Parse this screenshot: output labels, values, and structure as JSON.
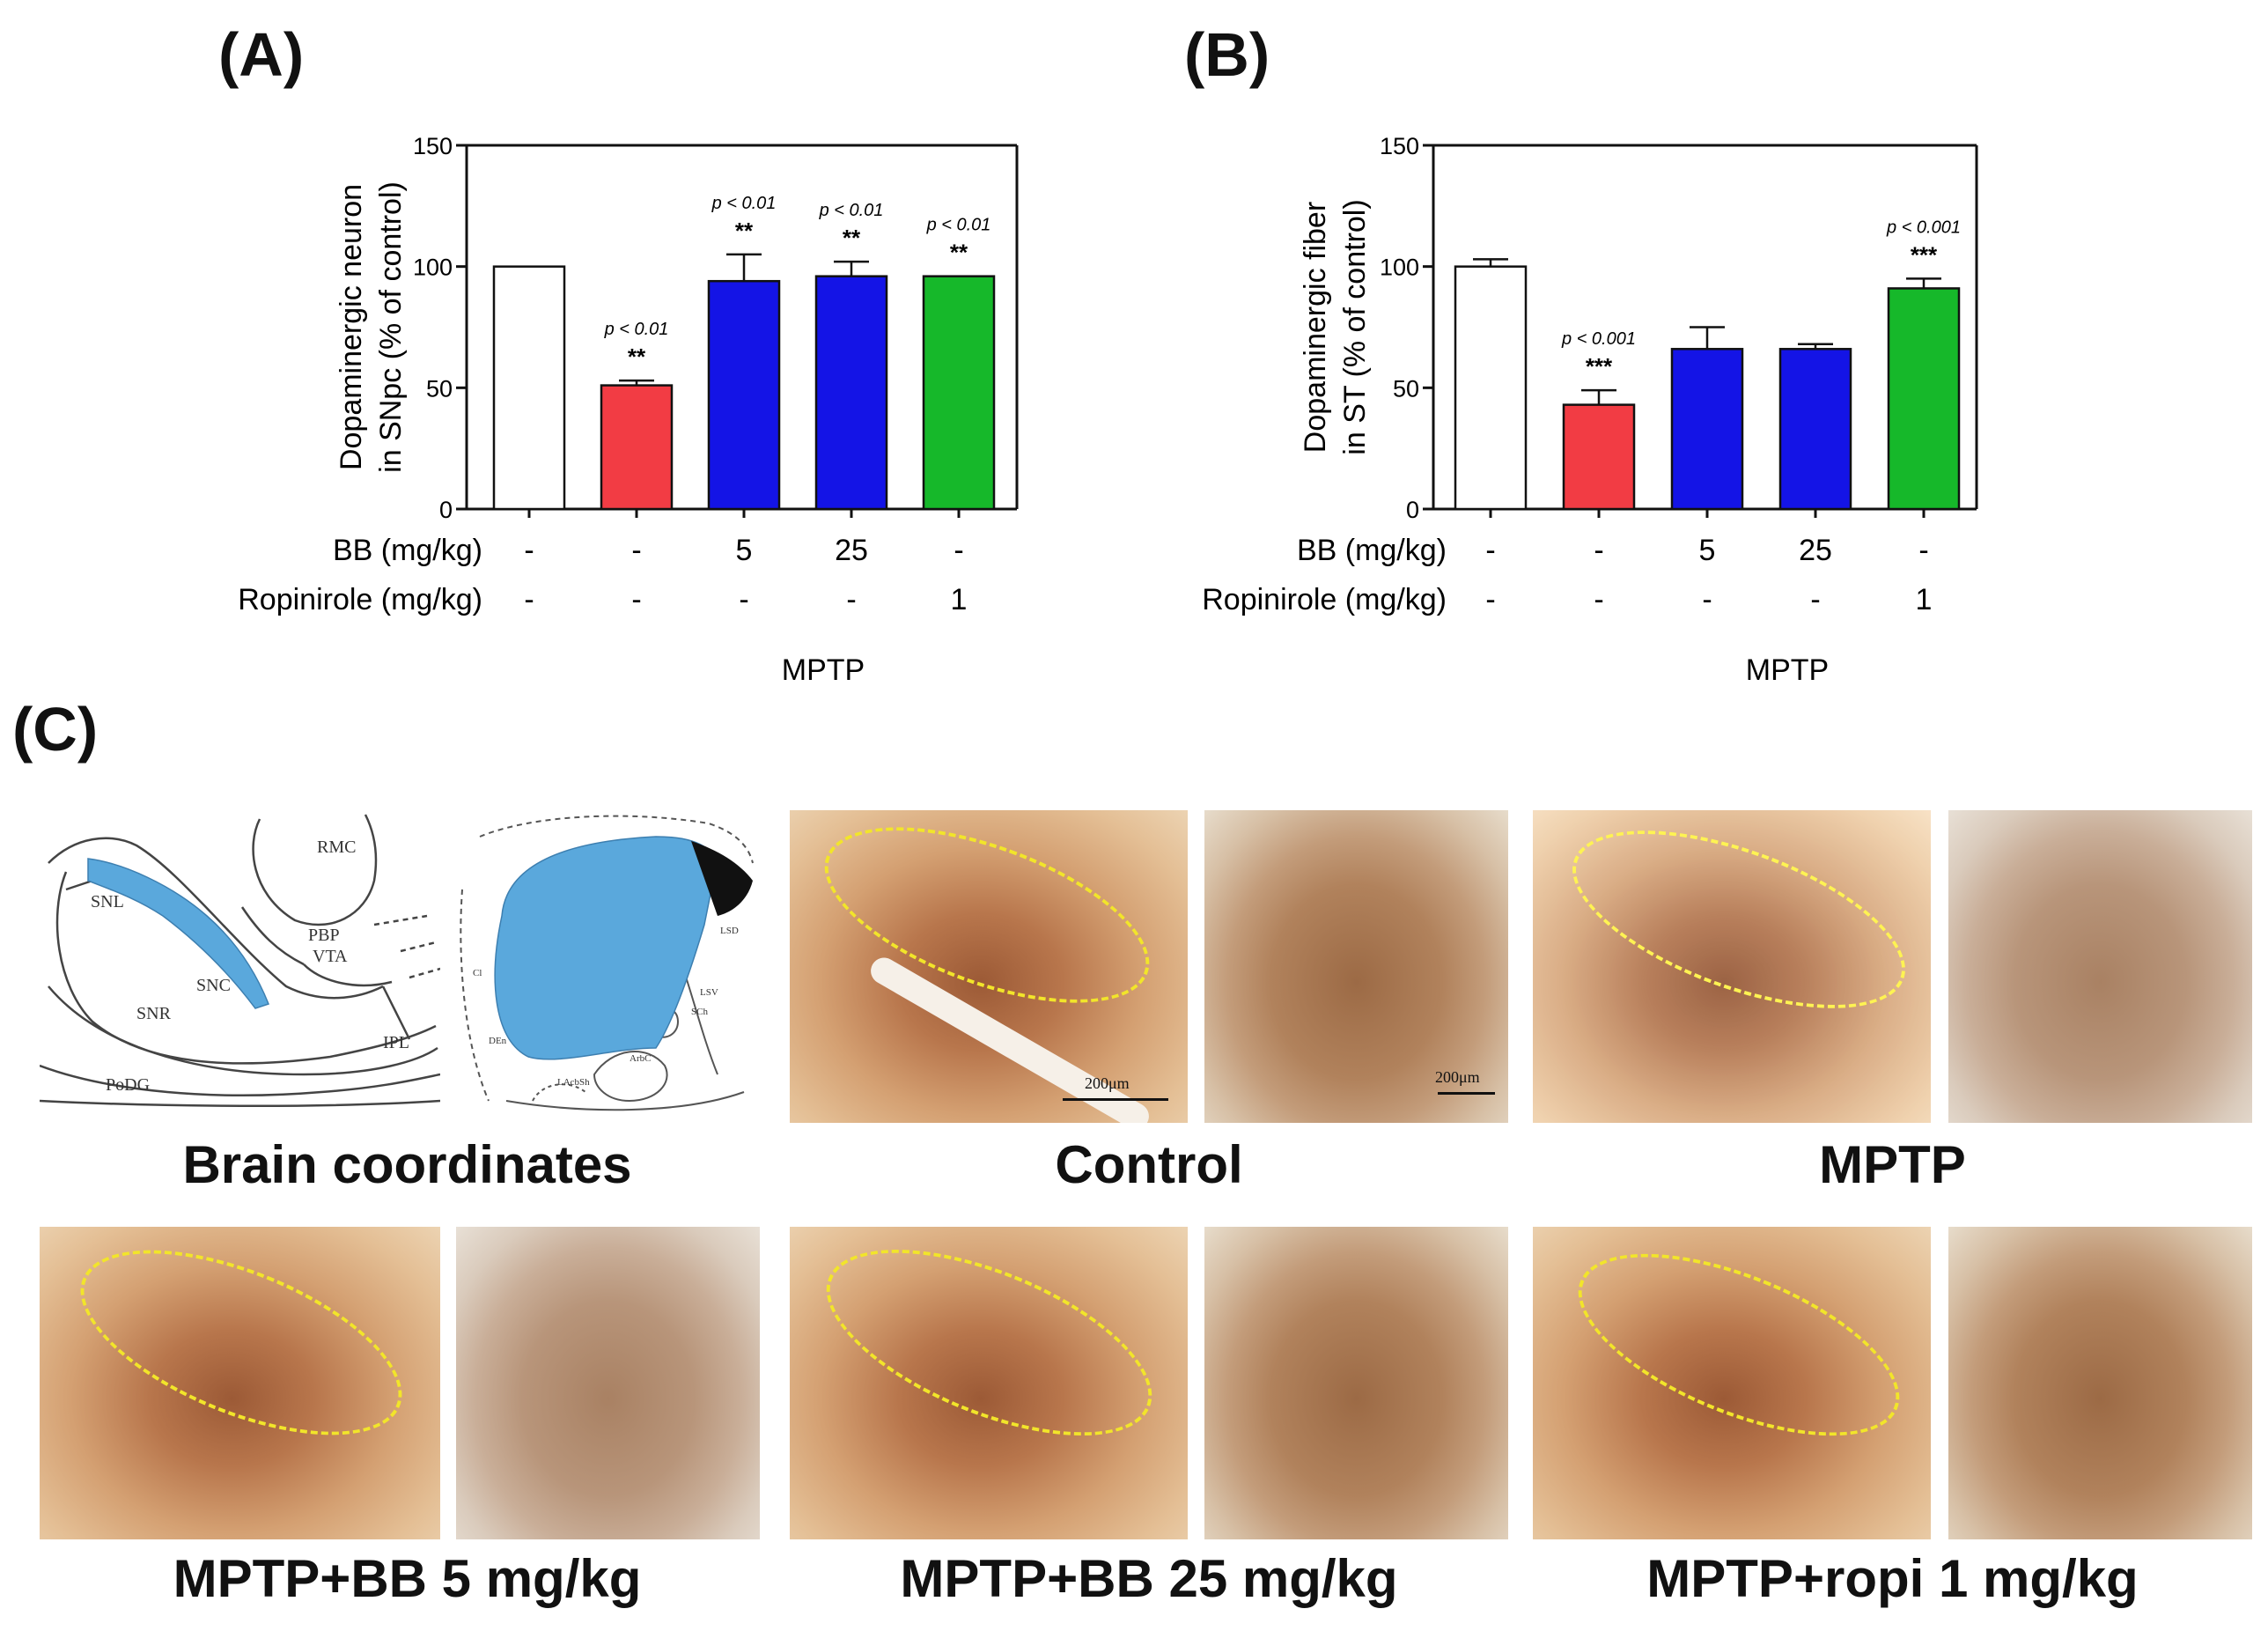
{
  "panels": {
    "a_label": "(A)",
    "b_label": "(B)",
    "c_label": "(C)"
  },
  "colors": {
    "control": "#ffffff",
    "mptp": "#f23c44",
    "bb": "#1414e6",
    "ropinirole": "#16b82a",
    "ellipse": "#f2e52a",
    "atlas_fill": "#5aa8dc"
  },
  "chart_data": [
    {
      "type": "bar",
      "title": "(A)",
      "ylabel_line1": "Dopaminergic neuron",
      "ylabel_line2": "in SNpc (% of control)",
      "ylim": [
        0,
        150
      ],
      "yticks": [
        "0",
        "50",
        "100",
        "150"
      ],
      "categories": [
        "Control",
        "MPTP",
        "MPTP+BB 5",
        "MPTP+BB 25",
        "MPTP+Ropinirole 1"
      ],
      "values": [
        100,
        51,
        94,
        96,
        96
      ],
      "errors": [
        0,
        2,
        11,
        6,
        0
      ],
      "stars": [
        "",
        "**",
        "**",
        "**",
        "**"
      ],
      "pvalues": [
        "",
        "p < 0.01",
        "p < 0.01",
        "p < 0.01",
        "p < 0.01"
      ],
      "bb_label": "BB (mg/kg)",
      "bb_values": [
        "-",
        "-",
        "5",
        "25",
        "-"
      ],
      "ropi_label": "Ropinirole (mg/kg)",
      "ropi_values": [
        "-",
        "-",
        "-",
        "-",
        "1"
      ],
      "group_label": "MPTP"
    },
    {
      "type": "bar",
      "title": "(B)",
      "ylabel_line1": "Dopaminergic fiber",
      "ylabel_line2": "in ST (% of control)",
      "ylim": [
        0,
        150
      ],
      "yticks": [
        "0",
        "50",
        "100",
        "150"
      ],
      "categories": [
        "Control",
        "MPTP",
        "MPTP+BB 5",
        "MPTP+BB 25",
        "MPTP+Ropinirole 1"
      ],
      "values": [
        100,
        43,
        66,
        66,
        91
      ],
      "errors": [
        3,
        6,
        9,
        2,
        4
      ],
      "stars": [
        "",
        "***",
        "",
        "",
        "***"
      ],
      "pvalues": [
        "",
        "p < 0.001",
        "",
        "",
        "p < 0.001"
      ],
      "bb_label": "BB (mg/kg)",
      "bb_values": [
        "-",
        "-",
        "5",
        "25",
        "-"
      ],
      "ropi_label": "Ropinirole (mg/kg)",
      "ropi_values": [
        "-",
        "-",
        "-",
        "-",
        "1"
      ],
      "group_label": "MPTP"
    }
  ],
  "atlas": {
    "sn_labels": [
      "SNL",
      "RMC",
      "PBP",
      "VTA",
      "SNC",
      "SNR",
      "IPL",
      "PoDG"
    ],
    "st_labels": [
      "Cl",
      "LSD",
      "LSV",
      "SCh",
      "DEn",
      "ArbC",
      "LAcbSh"
    ]
  },
  "scalebars": {
    "sn": "200μm",
    "st": "200μm"
  },
  "captions": {
    "brain": "Brain coordinates",
    "control": "Control",
    "mptp": "MPTP",
    "bb5": "MPTP+BB 5 mg/kg",
    "bb25": "MPTP+BB 25 mg/kg",
    "ropi": "MPTP+ropi 1 mg/kg"
  }
}
